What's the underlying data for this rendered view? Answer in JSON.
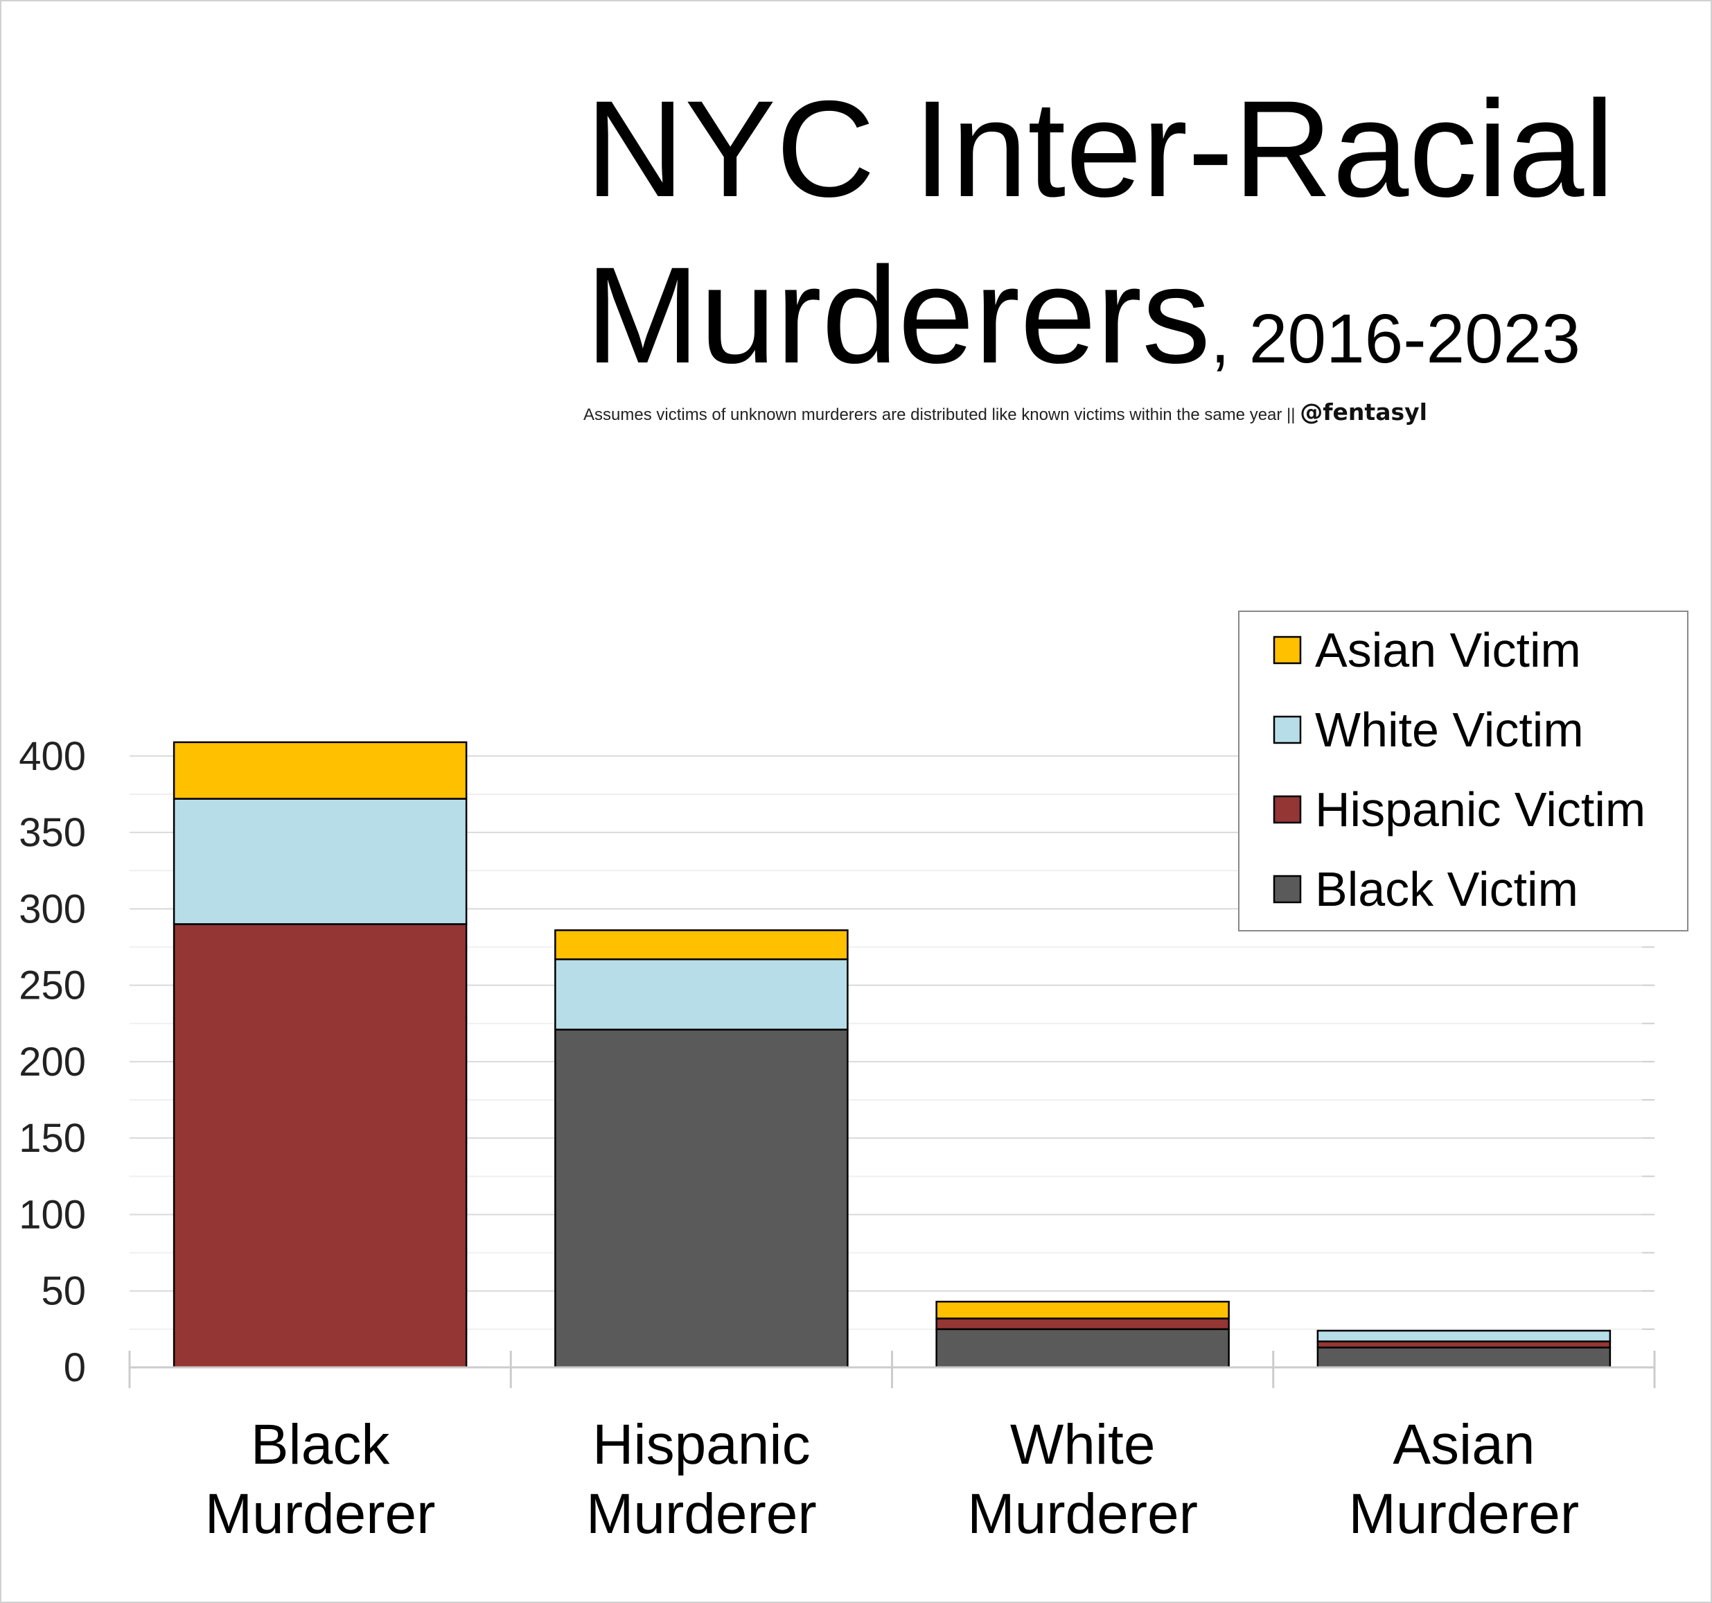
{
  "chart_data": {
    "type": "bar",
    "stacked": true,
    "title": "NYC Inter-Racial Murderers",
    "title_suffix": ", 2016-2023",
    "title_lines": [
      "NYC Inter-Racial",
      "Murderers"
    ],
    "subtitle": "Assumes victims of unknown murderers are distributed like known victims within the same year || ",
    "handle": "@fentasyl",
    "xlabel": "",
    "ylabel": "",
    "ylim": [
      0,
      420
    ],
    "yticks": [
      0,
      50,
      100,
      150,
      200,
      250,
      300,
      350,
      400
    ],
    "grid": true,
    "legend_position": "right",
    "categories": [
      [
        "Black",
        "Murderer"
      ],
      [
        "Hispanic",
        "Murderer"
      ],
      [
        "White",
        "Murderer"
      ],
      [
        "Asian",
        "Murderer"
      ]
    ],
    "series": [
      {
        "name": "Black Victim",
        "color": "#5a5a5a",
        "values": [
          0,
          221,
          25,
          13
        ]
      },
      {
        "name": "Hispanic Victim",
        "color": "#943634",
        "values": [
          290,
          0,
          7,
          4
        ]
      },
      {
        "name": "White Victim",
        "color": "#b7dee8",
        "values": [
          82,
          46,
          0,
          7
        ]
      },
      {
        "name": "Asian Victim",
        "color": "#ffc000",
        "values": [
          37,
          19,
          11,
          0
        ]
      }
    ]
  }
}
